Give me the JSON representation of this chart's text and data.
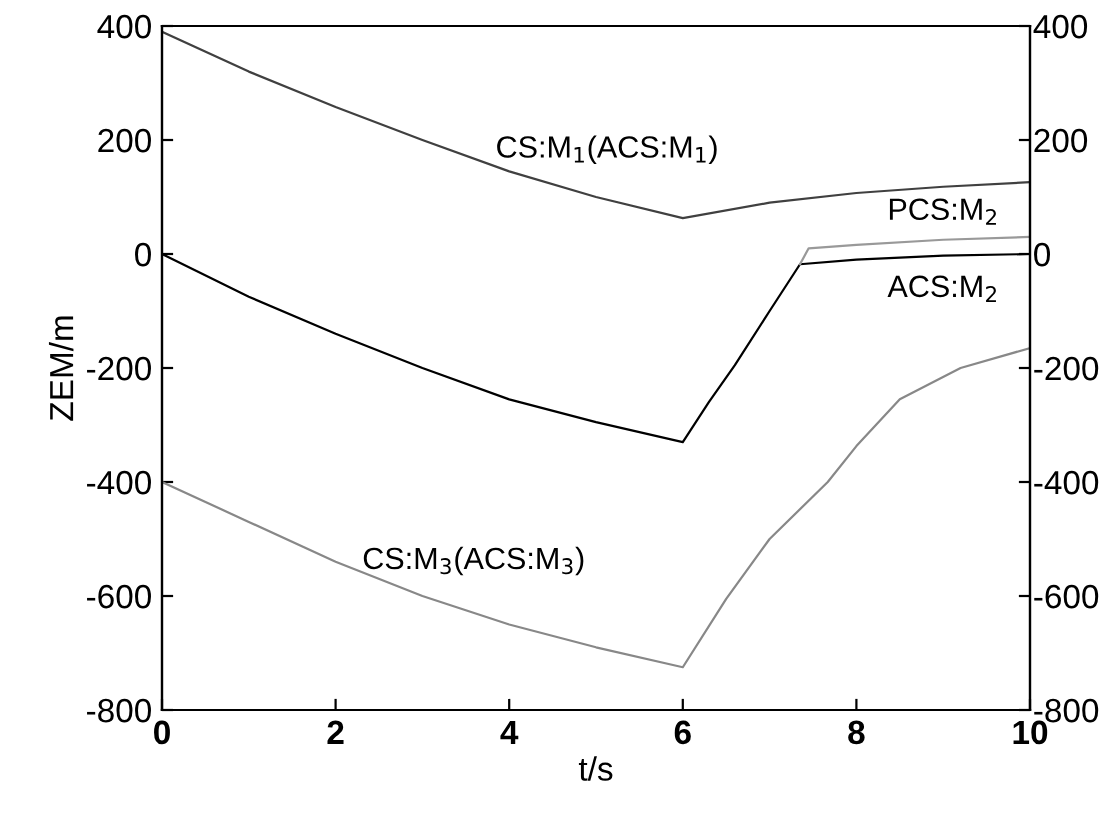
{
  "chart_data": {
    "type": "line",
    "xlabel": "t/s",
    "ylabel": "ZEM/m",
    "xlim": [
      0,
      10
    ],
    "xticks": [
      0,
      2,
      4,
      6,
      8,
      10
    ],
    "ylim": [
      -800,
      400
    ],
    "yticks": [
      -800,
      -600,
      -400,
      -200,
      0,
      200,
      400
    ],
    "y2lim": [
      -800,
      400
    ],
    "y2ticks": [
      -800,
      -600,
      -400,
      -200,
      0,
      200,
      400
    ],
    "grid": false,
    "legend": false,
    "marker": "none",
    "line_style": "solid",
    "series": [
      {
        "name": "CS:M$_{1}$(ACS:M$_{1}$)",
        "color": "#404040",
        "x": [
          0,
          1,
          2,
          3,
          4,
          5,
          6,
          7,
          8,
          9,
          10
        ],
        "values": [
          390,
          320,
          258,
          200,
          145,
          100,
          63,
          90,
          107,
          118,
          126
        ]
      },
      {
        "name": "ACS:M$_{2}$",
        "color": "#000000",
        "x": [
          0,
          1,
          2,
          3,
          4,
          5,
          6,
          6.3,
          6.6,
          7,
          7.35,
          8,
          9,
          10
        ],
        "values": [
          0,
          -75,
          -140,
          -200,
          -255,
          -295,
          -330,
          -260,
          -195,
          -100,
          -18,
          -10,
          -3,
          0
        ]
      },
      {
        "name": "PCS:M$_{2}$",
        "color": "#999999",
        "x": [
          7.35,
          7.45,
          8,
          9,
          10
        ],
        "values": [
          -18,
          10,
          16,
          25,
          30
        ]
      },
      {
        "name": "CS:M$_{3}$(ACS:M$_{3}$)",
        "color": "#888888",
        "x": [
          0,
          1,
          2,
          3,
          4,
          5,
          6,
          6.5,
          7,
          7.67,
          8,
          8.5,
          9.2,
          10
        ],
        "values": [
          -400,
          -470,
          -540,
          -600,
          -650,
          -690,
          -725,
          -605,
          -500,
          -400,
          -337,
          -255,
          -200,
          -165
        ]
      }
    ]
  }
}
